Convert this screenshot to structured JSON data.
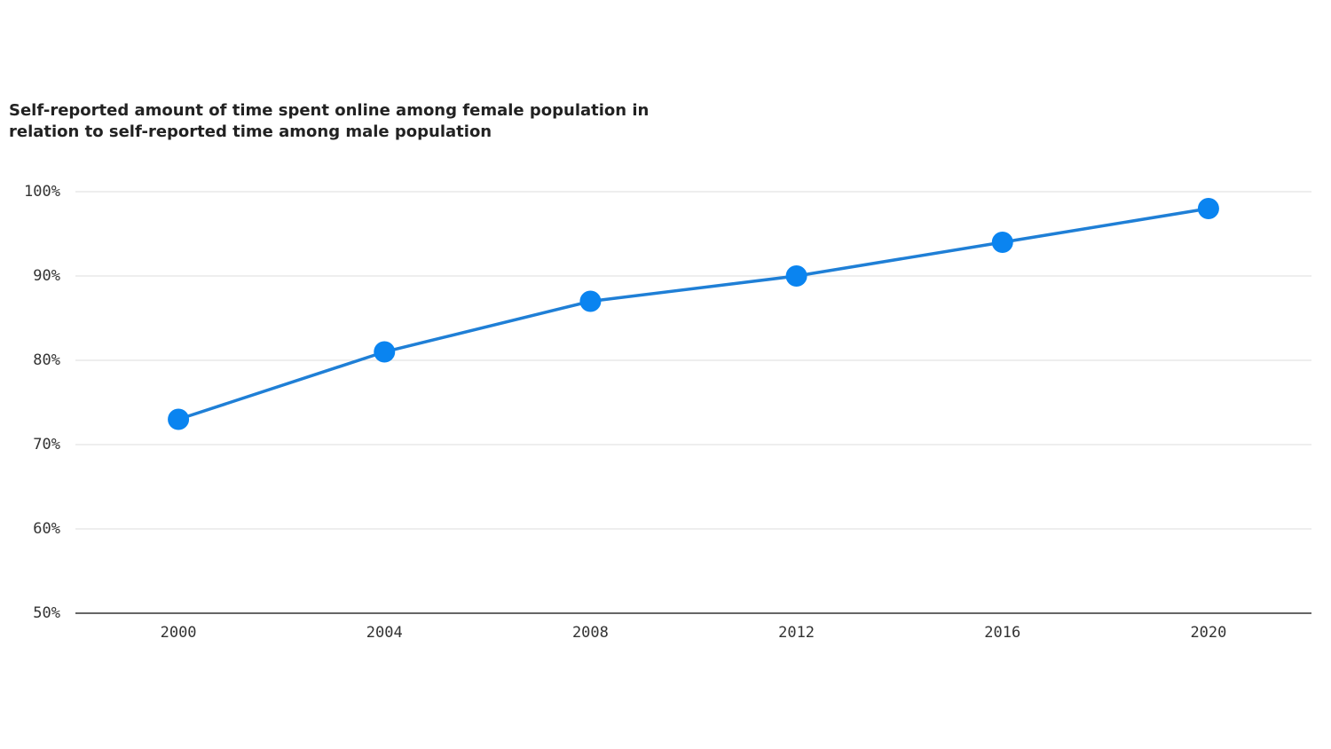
{
  "chart_data": {
    "type": "line",
    "title": "Self-reported amount of time spent online among female population in relation to self-reported time among male population",
    "x": [
      2000,
      2004,
      2008,
      2012,
      2016,
      2020
    ],
    "series": [
      {
        "values": [
          73,
          81,
          87,
          90,
          94,
          98
        ],
        "color": "#1f7fd6",
        "marker_color": "#0a84f0"
      }
    ],
    "xlim": [
      1998,
      2022
    ],
    "xticks": [
      2000,
      2004,
      2008,
      2012,
      2016,
      2020
    ],
    "ylim": [
      50,
      100
    ],
    "yticks": [
      {
        "value": 50,
        "label": "50%"
      },
      {
        "value": 60,
        "label": "60%"
      },
      {
        "value": 70,
        "label": "70%"
      },
      {
        "value": 80,
        "label": "80%"
      },
      {
        "value": 90,
        "label": "90%"
      },
      {
        "value": 100,
        "label": "100%"
      }
    ],
    "grid": true
  }
}
